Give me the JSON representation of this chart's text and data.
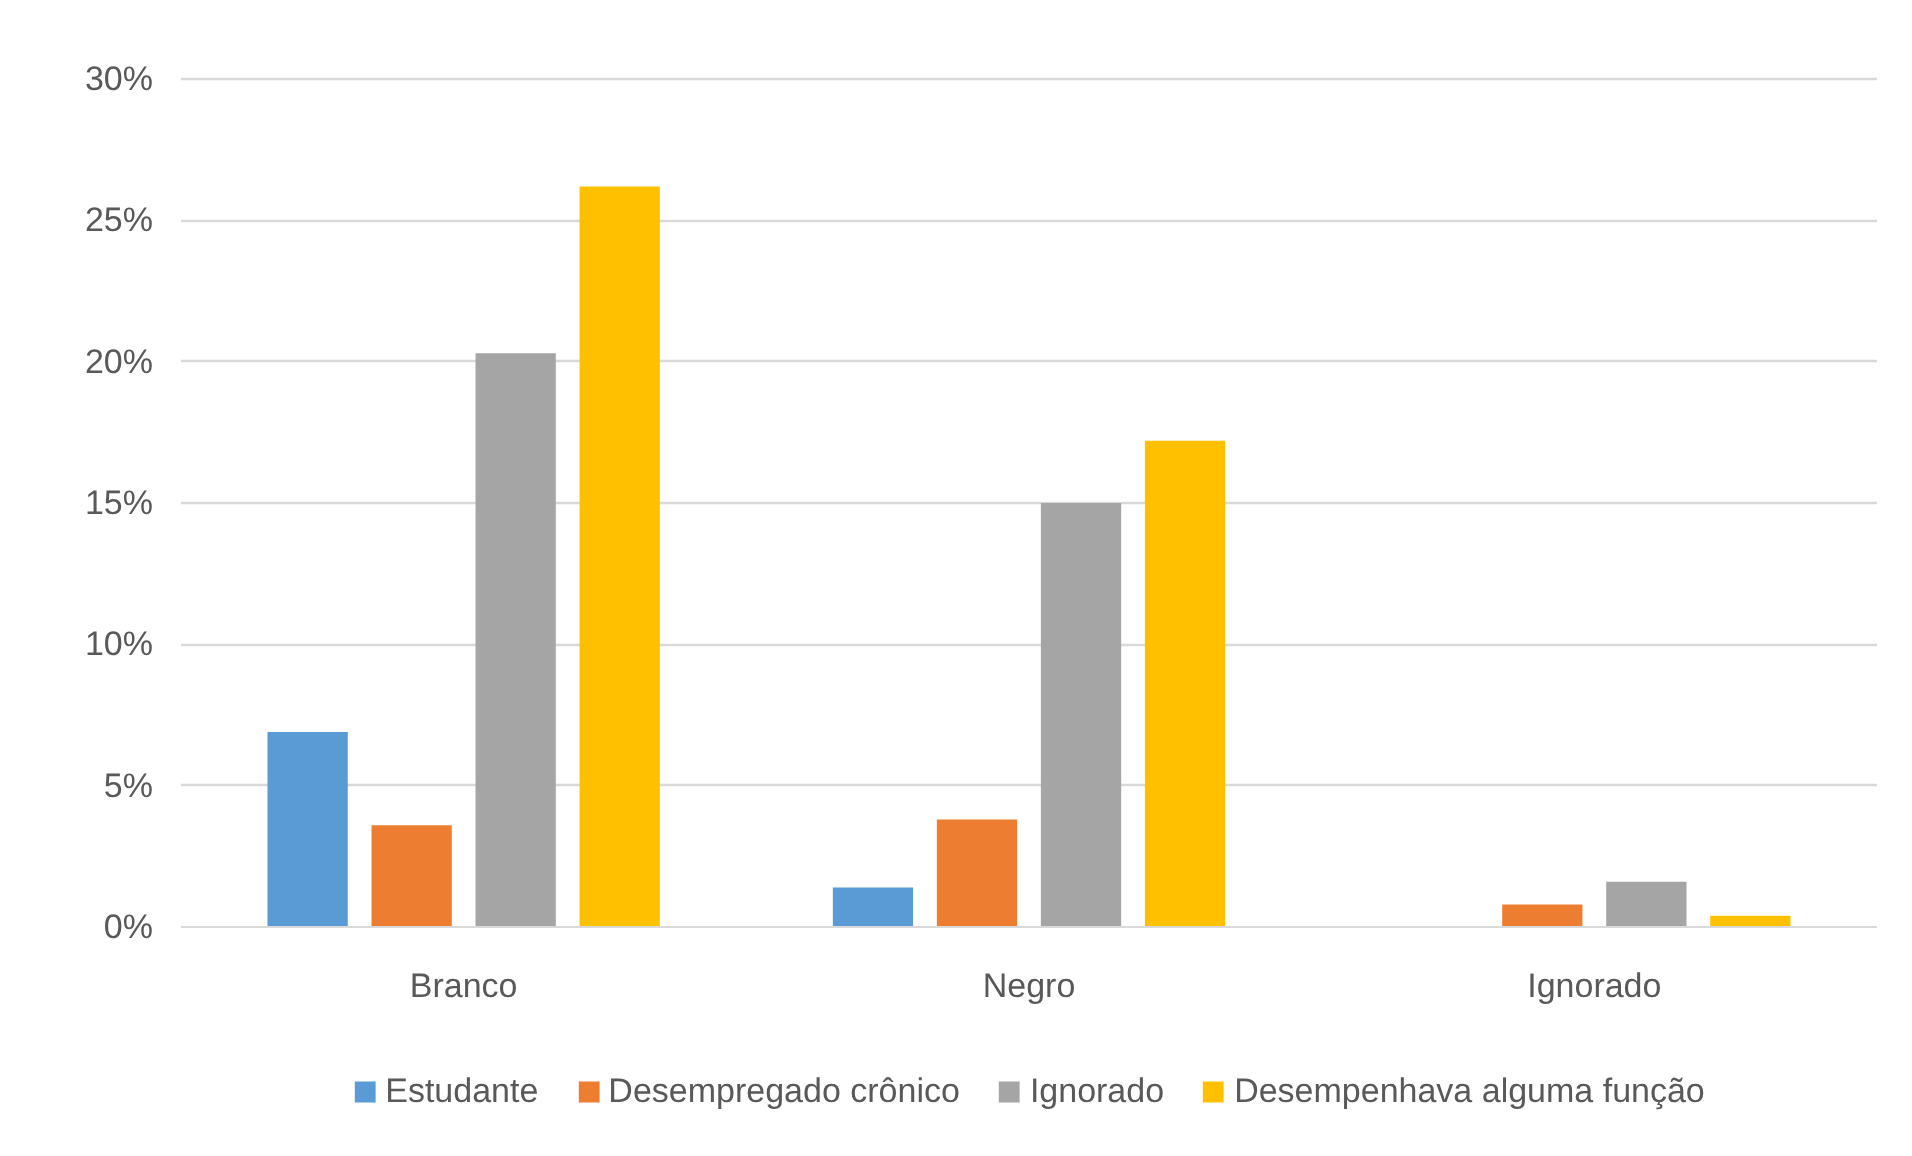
{
  "chart_data": {
    "type": "bar",
    "categories": [
      "Branco",
      "Negro",
      "Ignorado"
    ],
    "series": [
      {
        "name": "Estudante",
        "color": "#5b9bd5",
        "values": [
          6.9,
          1.4,
          null
        ]
      },
      {
        "name": "Desempregado crônico",
        "color": "#ed7d31",
        "values": [
          3.6,
          3.8,
          0.8
        ]
      },
      {
        "name": "Ignorado",
        "color": "#a5a5a5",
        "values": [
          20.3,
          15.0,
          1.6
        ]
      },
      {
        "name": "Desempenhava alguma função",
        "color": "#ffc000",
        "values": [
          26.2,
          17.2,
          0.4
        ]
      }
    ],
    "ylim": [
      0,
      30
    ],
    "yticks": [
      {
        "value": 0,
        "label": "0%"
      },
      {
        "value": 5,
        "label": "5%"
      },
      {
        "value": 10,
        "label": "10%"
      },
      {
        "value": 15,
        "label": "15%"
      },
      {
        "value": 20,
        "label": "20%"
      },
      {
        "value": 25,
        "label": "25%"
      },
      {
        "value": 30,
        "label": "30%"
      }
    ],
    "grid": "y",
    "legend": "bottom"
  }
}
